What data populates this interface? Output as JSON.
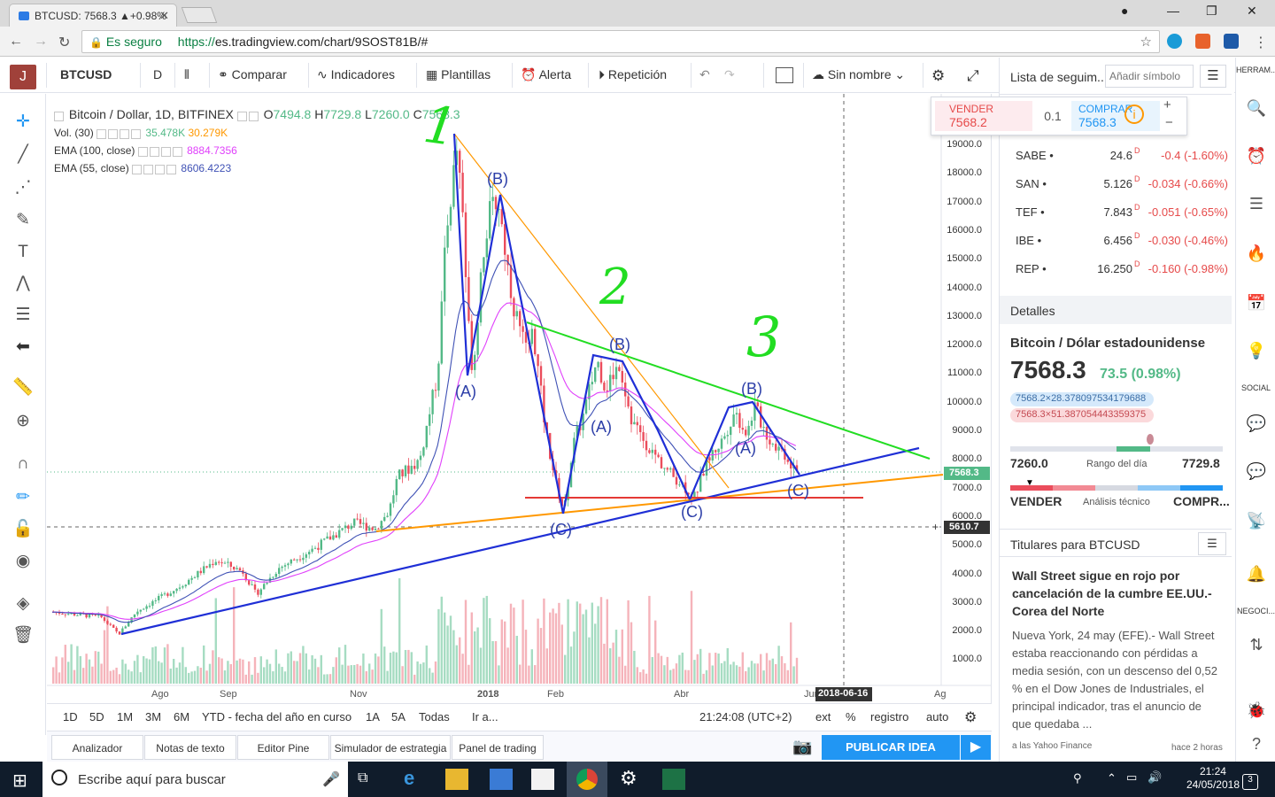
{
  "browser": {
    "tab_title": "BTCUSD: 7568.3 ▲+0.98%",
    "secure_label": "Es seguro",
    "url_prefix": "https://",
    "url_host": "es.tradingview.com",
    "url_path": "/chart/9SOST81B/#"
  },
  "toolbar": {
    "avatar_letter": "J",
    "symbol": "BTCUSD",
    "interval": "D",
    "compare": "Comparar",
    "indicators": "Indicadores",
    "templates": "Plantillas",
    "alert": "Alerta",
    "replay": "Repetición",
    "layout_name": "Sin nombre"
  },
  "legend": {
    "title": "Bitcoin / Dollar, 1D, BITFINEX",
    "o_label": "O",
    "o_val": "7494.8",
    "h_label": "H",
    "h_val": "7729.8",
    "l_label": "L",
    "l_val": "7260.0",
    "c_label": "C",
    "c_val": "7568.3",
    "vol_label": "Vol. (30)",
    "vol_val1": "35.478K",
    "vol_val2": "30.279K",
    "ema100_label": "EMA (100, close)",
    "ema100_val": "8884.7356",
    "ema55_label": "EMA (55, close)",
    "ema55_val": "8606.4223"
  },
  "price_axis": [
    "19000.0",
    "18000.0",
    "17000.0",
    "16000.0",
    "15000.0",
    "14000.0",
    "13000.0",
    "12000.0",
    "11000.0",
    "10000.0",
    "9000.0",
    "8000.0",
    "7000.0",
    "6000.0",
    "5000.0",
    "4000.0",
    "3000.0",
    "2000.0",
    "1000.0"
  ],
  "price_tags": {
    "last": "7568.3",
    "cursor": "5610.7",
    "cursor_date": "2018-06-16"
  },
  "time_axis": [
    "Ago",
    "Sep",
    "Nov",
    "2018",
    "Feb",
    "Abr",
    "Jun",
    "Ag"
  ],
  "annotations": {
    "wave1": "1",
    "wave2": "2",
    "wave3": "3",
    "labels": [
      "(B)",
      "(A)",
      "(C)",
      "(B)",
      "(A)",
      "(C)",
      "(B)",
      "(A)",
      "(C)"
    ]
  },
  "timeframes": [
    "1D",
    "5D",
    "1M",
    "3M",
    "6M",
    "YTD - fecha del año en curso",
    "1A",
    "5A",
    "Todas",
    "Ir a..."
  ],
  "time_display": "21:24:08 (UTC+2)",
  "axis_options": [
    "%",
    "ext",
    "registro",
    "auto"
  ],
  "bottom_tabs": [
    "Analizador",
    "Notas de texto",
    "Editor Pine",
    "Simulador de estrategia",
    "Panel de trading"
  ],
  "publish": "PUBLICAR IDEA",
  "order": {
    "sell_label": "VENDER",
    "sell_price": "7568.2",
    "qty": "0.1",
    "buy_label": "COMPRAR",
    "buy_price": "7568.3"
  },
  "watchlist": {
    "title": "Lista de seguim...",
    "add_placeholder": "Añadir símbolo",
    "rows": [
      {
        "sym": "SABE",
        "last": "24.6",
        "chg": "-0.4 (-1.60%)"
      },
      {
        "sym": "SAN",
        "last": "5.126",
        "chg": "-0.034 (-0.66%)"
      },
      {
        "sym": "TEF",
        "last": "7.843",
        "chg": "-0.051 (-0.65%)"
      },
      {
        "sym": "IBE",
        "last": "6.456",
        "chg": "-0.030 (-0.46%)"
      },
      {
        "sym": "REP",
        "last": "16.250",
        "chg": "-0.160 (-0.98%)"
      }
    ]
  },
  "details": {
    "header": "Detalles",
    "name": "Bitcoin / Dólar estadounidense",
    "price": "7568.3",
    "change": "73.5 (0.98%)",
    "bid": "7568.2×28.378097534179688",
    "ask": "7568.3×51.387054443359375",
    "low": "7260.0",
    "high": "7729.8",
    "range_label": "Rango del día",
    "sell": "VENDER",
    "analysis": "Análisis técnico",
    "buy": "COMPR..."
  },
  "news": {
    "header": "Titulares para BTCUSD",
    "headline": "Wall Street sigue en rojo por cancelación de la cumbre EE.UU.-Corea del Norte",
    "body": "Nueva York, 24 may (EFE).- Wall Street estaba reaccionando con pérdidas a media sesión, con un descenso del 0,52 % en el Dow Jones de Industriales, el principal indicador, tras el anuncio de que quedaba ...",
    "source": "a las Yahoo Finance",
    "time": "hace 2 horas"
  },
  "far_right": {
    "herram": "HERRAM...",
    "social": "SOCIAL",
    "negoci": "NEGOCI..."
  },
  "taskbar": {
    "search": "Escribe aquí para buscar",
    "time": "21:24",
    "date": "24/05/2018",
    "badge": "3"
  },
  "colors": {
    "up": "#53b987",
    "down": "#eb4d5c",
    "accent": "#2196f3",
    "ema100": "#e040fb",
    "ema55": "#3f51b5"
  }
}
